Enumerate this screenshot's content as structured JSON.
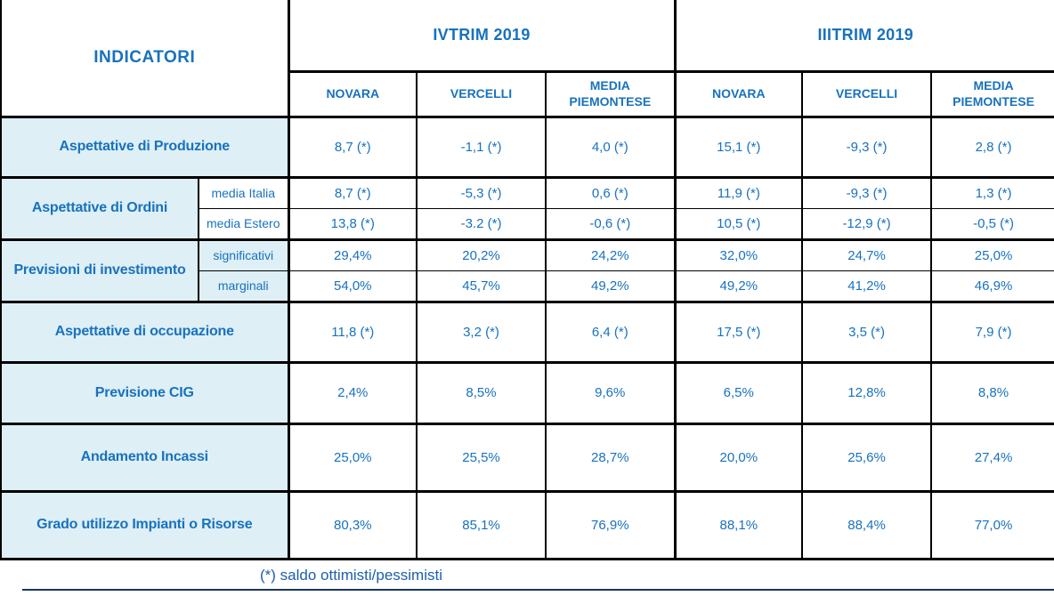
{
  "colors": {
    "accent_text": "#1872bd",
    "label_text": "#1470b8",
    "row_label_bg": "#deeff6",
    "grid_line": "#000000",
    "bottom_rule": "#17375d",
    "footnote_text": "#1d5fa9"
  },
  "table": {
    "indicatori": "INDICATORI",
    "groups": [
      {
        "label": "IVTRIM 2019",
        "columns": [
          "NOVARA",
          "VERCELLI",
          "MEDIA PIEMONTESE"
        ]
      },
      {
        "label": "IIITRIM 2019",
        "columns": [
          "NOVARA",
          "VERCELLI",
          "MEDIA PIEMONTESE"
        ]
      }
    ],
    "rows": [
      {
        "label": "Aspettative di Produzione",
        "values": [
          "8,7 (*)",
          "-1,1 (*)",
          "4,0 (*)",
          "15,1 (*)",
          "-9,3 (*)",
          "2,8 (*)"
        ]
      },
      {
        "label": "Aspettative di Ordini",
        "sublabel": "media Italia",
        "values": [
          "8,7 (*)",
          "-5,3 (*)",
          "0,6 (*)",
          "11,9 (*)",
          "-9,3 (*)",
          "1,3 (*)"
        ]
      },
      {
        "sublabel": "media Estero",
        "values": [
          "13,8 (*)",
          "-3.2 (*)",
          "-0,6 (*)",
          "10,5 (*)",
          "-12,9 (*)",
          "-0,5 (*)"
        ]
      },
      {
        "label": "Previsioni di investimento",
        "sublabel": "significativi",
        "values": [
          "29,4%",
          "20,2%",
          "24,2%",
          "32,0%",
          "24,7%",
          "25,0%"
        ]
      },
      {
        "sublabel": "marginali",
        "values": [
          "54,0%",
          "45,7%",
          "49,2%",
          "49,2%",
          "41,2%",
          "46,9%"
        ]
      },
      {
        "label": "Aspettative di occupazione",
        "values": [
          "11,8 (*)",
          "3,2 (*)",
          "6,4 (*)",
          "17,5 (*)",
          "3,5 (*)",
          "7,9 (*)"
        ]
      },
      {
        "label": "Previsione CIG",
        "values": [
          "2,4%",
          "8,5%",
          "9,6%",
          "6,5%",
          "12,8%",
          "8,8%"
        ]
      },
      {
        "label": "Andamento Incassi",
        "values": [
          "25,0%",
          "25,5%",
          "28,7%",
          "20,0%",
          "25,6%",
          "27,4%"
        ]
      },
      {
        "label": "Grado utilizzo Impianti o Risorse",
        "values": [
          "80,3%",
          "85,1%",
          "76,9%",
          "88,1%",
          "88,4%",
          "77,0%"
        ]
      }
    ]
  },
  "footnote": "(*) saldo ottimisti/pessimisti",
  "chart_data": {
    "type": "table",
    "title": "INDICATORI",
    "column_groups": [
      "IVTRIM 2019",
      "IIITRIM 2019"
    ],
    "columns": [
      "NOVARA",
      "VERCELLI",
      "MEDIA PIEMONTESE",
      "NOVARA",
      "VERCELLI",
      "MEDIA PIEMONTESE"
    ],
    "rows": [
      {
        "indicator": "Aspettative di Produzione",
        "values": [
          "8,7 (*)",
          "-1,1 (*)",
          "4,0 (*)",
          "15,1 (*)",
          "-9,3 (*)",
          "2,8 (*)"
        ]
      },
      {
        "indicator": "Aspettative di Ordini — media Italia",
        "values": [
          "8,7 (*)",
          "-5,3 (*)",
          "0,6 (*)",
          "11,9 (*)",
          "-9,3 (*)",
          "1,3 (*)"
        ]
      },
      {
        "indicator": "Aspettative di Ordini — media Estero",
        "values": [
          "13,8 (*)",
          "-3.2 (*)",
          "-0,6 (*)",
          "10,5 (*)",
          "-12,9 (*)",
          "-0,5 (*)"
        ]
      },
      {
        "indicator": "Previsioni di investimento — significativi",
        "values": [
          "29,4%",
          "20,2%",
          "24,2%",
          "32,0%",
          "24,7%",
          "25,0%"
        ]
      },
      {
        "indicator": "Previsioni di investimento — marginali",
        "values": [
          "54,0%",
          "45,7%",
          "49,2%",
          "49,2%",
          "41,2%",
          "46,9%"
        ]
      },
      {
        "indicator": "Aspettative di occupazione",
        "values": [
          "11,8 (*)",
          "3,2 (*)",
          "6,4 (*)",
          "17,5 (*)",
          "3,5 (*)",
          "7,9 (*)"
        ]
      },
      {
        "indicator": "Previsione CIG",
        "values": [
          "2,4%",
          "8,5%",
          "9,6%",
          "6,5%",
          "12,8%",
          "8,8%"
        ]
      },
      {
        "indicator": "Andamento Incassi",
        "values": [
          "25,0%",
          "25,5%",
          "28,7%",
          "20,0%",
          "25,6%",
          "27,4%"
        ]
      },
      {
        "indicator": "Grado utilizzo Impianti o Risorse",
        "values": [
          "80,3%",
          "85,1%",
          "76,9%",
          "88,1%",
          "88,4%",
          "77,0%"
        ]
      }
    ],
    "footnote": "(*) saldo ottimisti/pessimisti"
  }
}
